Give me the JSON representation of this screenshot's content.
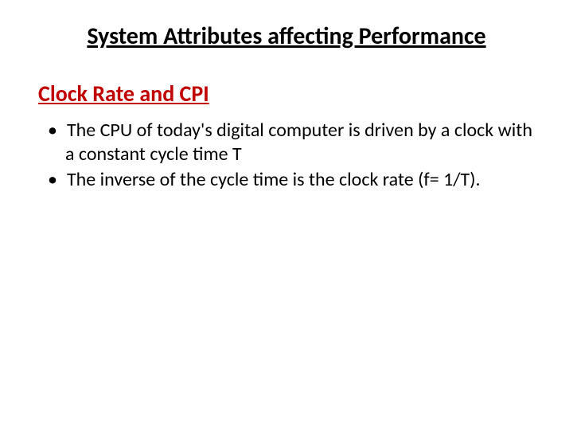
{
  "slide": {
    "main_title": "System Attributes affecting Performance",
    "section_title": "Clock Rate and CPI",
    "section_title_color": "#c00000",
    "bullets": [
      "The CPU of today's digital computer is driven by a clock  with a constant cycle time T",
      "The inverse of the cycle time is the clock rate (f= 1/T)."
    ],
    "text_color": "#000000",
    "background_color": "#ffffff",
    "title_fontsize": 30,
    "section_fontsize": 28,
    "body_fontsize": 24
  }
}
